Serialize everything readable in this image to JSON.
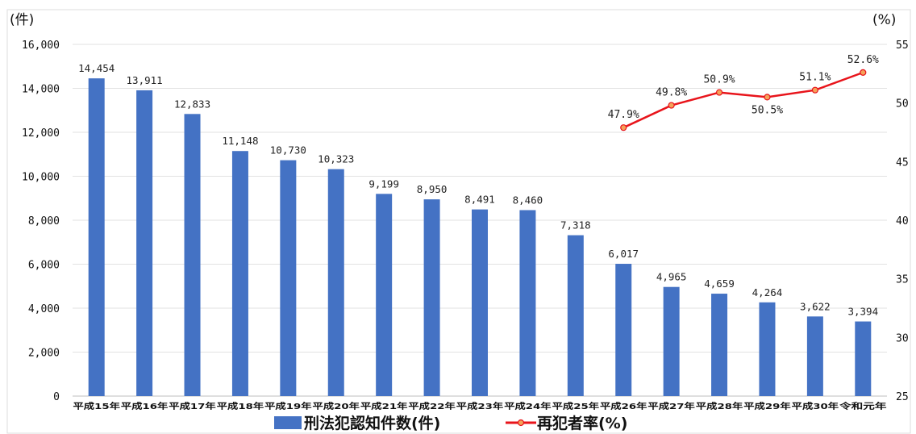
{
  "chart_data": {
    "type": "bar+line",
    "categories": [
      "平成15年",
      "平成16年",
      "平成17年",
      "平成18年",
      "平成19年",
      "平成20年",
      "平成21年",
      "平成22年",
      "平成23年",
      "平成24年",
      "平成25年",
      "平成26年",
      "平成27年",
      "平成28年",
      "平成29年",
      "平成30年",
      "令和元年"
    ],
    "y_left_unit": "(件)",
    "y_right_unit": "(%)",
    "ylim_left": [
      0,
      16000
    ],
    "ylim_right": [
      25,
      55
    ],
    "yticks_left": [
      "0",
      "2,000",
      "4,000",
      "6,000",
      "8,000",
      "10,000",
      "12,000",
      "14,000",
      "16,000"
    ],
    "yticks_left_values": [
      0,
      2000,
      4000,
      6000,
      8000,
      10000,
      12000,
      14000,
      16000
    ],
    "yticks_right": [
      "25",
      "30",
      "35",
      "40",
      "45",
      "50",
      "55"
    ],
    "yticks_right_values": [
      25,
      30,
      35,
      40,
      45,
      50,
      55
    ],
    "grid": true,
    "legend_position": "bottom",
    "series": [
      {
        "name": "刑法犯認知件数(件)",
        "type": "bar",
        "axis": "left",
        "color": "#4472C4",
        "values": [
          14454,
          13911,
          12833,
          11148,
          10730,
          10323,
          9199,
          8950,
          8491,
          8460,
          7318,
          6017,
          4965,
          4659,
          4264,
          3622,
          3394
        ],
        "labels": [
          "14,454",
          "13,911",
          "12,833",
          "11,148",
          "10,730",
          "10,323",
          "9,199",
          "8,950",
          "8,491",
          "8,460",
          "7,318",
          "6,017",
          "4,965",
          "4,659",
          "4,264",
          "3,622",
          "3,394"
        ]
      },
      {
        "name": "再犯者率(%)",
        "type": "line",
        "axis": "right",
        "color": "#E8141B",
        "marker_color": "#F4A259",
        "values": [
          null,
          null,
          null,
          null,
          null,
          null,
          null,
          null,
          null,
          null,
          null,
          47.9,
          49.8,
          50.9,
          50.5,
          51.1,
          52.6
        ],
        "labels": [
          "",
          "",
          "",
          "",
          "",
          "",
          "",
          "",
          "",
          "",
          "",
          "47.9%",
          "49.8%",
          "50.9%",
          "50.5%",
          "51.1%",
          "52.6%"
        ]
      }
    ]
  }
}
